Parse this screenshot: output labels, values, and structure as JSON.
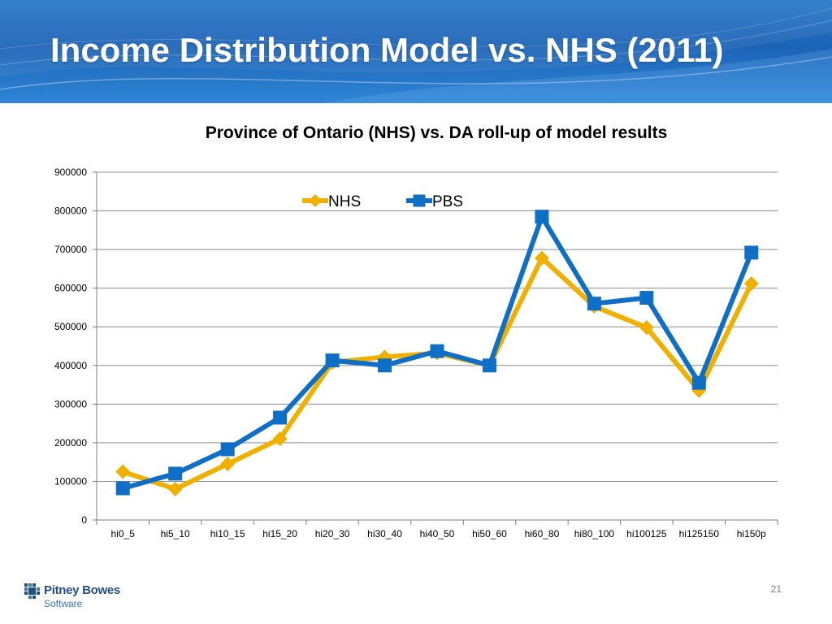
{
  "slide": {
    "title": "Income Distribution Model vs. NHS (2011)",
    "page_number": "21"
  },
  "logo": {
    "name": "Pitney Bowes",
    "sub": "Software"
  },
  "colors": {
    "banner": "#1c63b6",
    "nhs": "#F0B000",
    "pbs": "#0F6FC6",
    "grid": "#8c8c8c"
  },
  "chart_data": {
    "type": "line",
    "title": "Province of Ontario (NHS) vs. DA roll-up of model results",
    "xlabel": "",
    "ylabel": "",
    "ylim": [
      0,
      900000
    ],
    "yticks": [
      "0",
      "100000",
      "200000",
      "300000",
      "400000",
      "500000",
      "600000",
      "700000",
      "800000",
      "900000"
    ],
    "grid": true,
    "legend_position": "top-center",
    "categories": [
      "hi0_5",
      "hi5_10",
      "hi10_15",
      "hi15_20",
      "hi20_30",
      "hi30_40",
      "hi40_50",
      "hi50_60",
      "hi60_80",
      "hi80_100",
      "hi100125",
      "hi125150",
      "hi150p"
    ],
    "series": [
      {
        "name": "NHS",
        "color": "#F0B000",
        "marker": "diamond",
        "values": [
          125000,
          80000,
          145000,
          210000,
          408000,
          422000,
          432000,
          400000,
          678000,
          553000,
          498000,
          335000,
          612000
        ]
      },
      {
        "name": "PBS",
        "color": "#0F6FC6",
        "marker": "square",
        "values": [
          82000,
          120000,
          183000,
          265000,
          413000,
          400000,
          437000,
          400000,
          785000,
          560000,
          575000,
          355000,
          692000
        ]
      }
    ]
  }
}
